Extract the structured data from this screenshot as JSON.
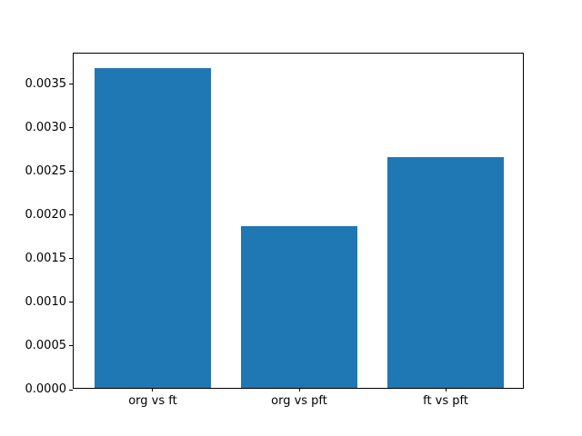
{
  "chart_data": {
    "type": "bar",
    "categories": [
      "org vs ft",
      "org vs pft",
      "ft vs pft"
    ],
    "values": [
      0.00367,
      0.00185,
      0.00265
    ],
    "title": "",
    "xlabel": "",
    "ylabel": "",
    "ylim": [
      0,
      0.003854
    ],
    "yticks": [
      0.0,
      0.0005,
      0.001,
      0.0015,
      0.002,
      0.0025,
      0.003,
      0.0035
    ],
    "ytick_labels": [
      "0.0000",
      "0.0005",
      "0.0010",
      "0.0015",
      "0.0020",
      "0.0025",
      "0.0030",
      "0.0035"
    ],
    "bar_color": "#1f77b4",
    "background_color": "#ffffff",
    "spine_color": "#000000",
    "grid": false,
    "legend": null
  }
}
